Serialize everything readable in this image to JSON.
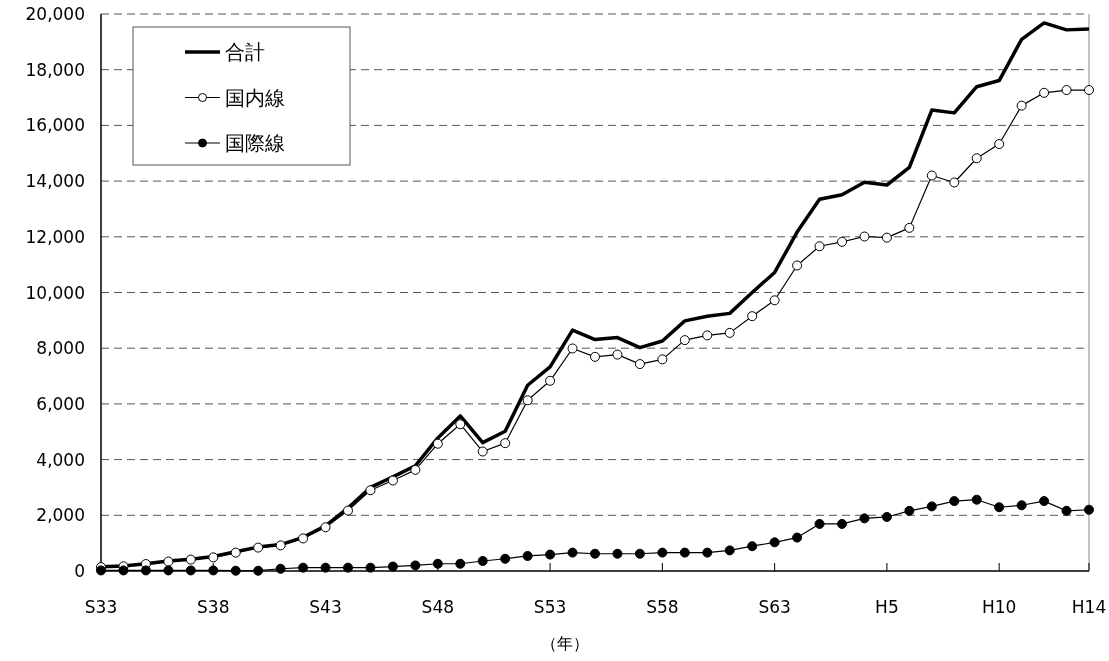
{
  "chart_data": {
    "type": "line",
    "xlabel": "（年）",
    "categories": [
      "S33",
      null,
      null,
      null,
      null,
      "S38",
      null,
      null,
      null,
      null,
      "S43",
      null,
      null,
      null,
      null,
      "S48",
      null,
      null,
      null,
      null,
      "S53",
      null,
      null,
      null,
      null,
      "S58",
      null,
      null,
      null,
      null,
      "S63",
      null,
      null,
      null,
      null,
      "H5",
      null,
      null,
      null,
      null,
      "H10",
      null,
      null,
      null,
      "H14"
    ],
    "series": [
      {
        "name": "合計",
        "color": "#000000",
        "marker": "none",
        "values": [
          150,
          180,
          260,
          360,
          420,
          520,
          690,
          860,
          950,
          1210,
          1620,
          2260,
          3000,
          3380,
          3780,
          4780,
          5570,
          4610,
          5020,
          6670,
          7330,
          8650,
          8310,
          8380,
          8020,
          8260,
          8980,
          9150,
          9250,
          10000,
          10720,
          12170,
          13350,
          13510,
          13960,
          13860,
          14490,
          16550,
          16450,
          17390,
          17610,
          19090,
          19680,
          19430,
          19460
        ]
      },
      {
        "name": "国内線",
        "color": "#000000",
        "marker": "circle",
        "values": [
          140,
          170,
          250,
          340,
          410,
          490,
          660,
          840,
          920,
          1170,
          1570,
          2170,
          2900,
          3250,
          3630,
          4570,
          5270,
          4290,
          4590,
          6130,
          6830,
          7990,
          7690,
          7770,
          7430,
          7600,
          8290,
          8460,
          8550,
          9150,
          9720,
          10970,
          11660,
          11820,
          12010,
          11970,
          12320,
          14200,
          13950,
          14820,
          15330,
          16710,
          17170,
          17270,
          17270
        ]
      },
      {
        "name": "国際線",
        "color": "#000000",
        "marker": "circle",
        "values": [
          20,
          20,
          20,
          20,
          20,
          20,
          10,
          10,
          80,
          120,
          120,
          120,
          120,
          160,
          200,
          260,
          260,
          360,
          440,
          540,
          590,
          660,
          620,
          620,
          620,
          660,
          660,
          660,
          740,
          890,
          1030,
          1200,
          1690,
          1690,
          1890,
          1940,
          2160,
          2320,
          2510,
          2560,
          2290,
          2360,
          2510,
          2160,
          2200
        ]
      }
    ],
    "ylim": [
      0,
      20000
    ],
    "yticks": [
      0,
      {
        "value": 2000,
        "label": "2,000"
      },
      {
        "value": 4000,
        "label": "4,000"
      },
      {
        "value": 6000,
        "label": "6,000"
      },
      {
        "value": 8000,
        "label": "8,000"
      },
      {
        "value": 10000,
        "label": "10,000"
      },
      {
        "value": 12000,
        "label": "12,000"
      },
      {
        "value": 14000,
        "label": "14,000"
      },
      {
        "value": 16000,
        "label": "16,000"
      },
      {
        "value": 18000,
        "label": "18,000"
      },
      {
        "value": 20000,
        "label": "20,000"
      }
    ],
    "grid": "y",
    "legend": "top left"
  }
}
